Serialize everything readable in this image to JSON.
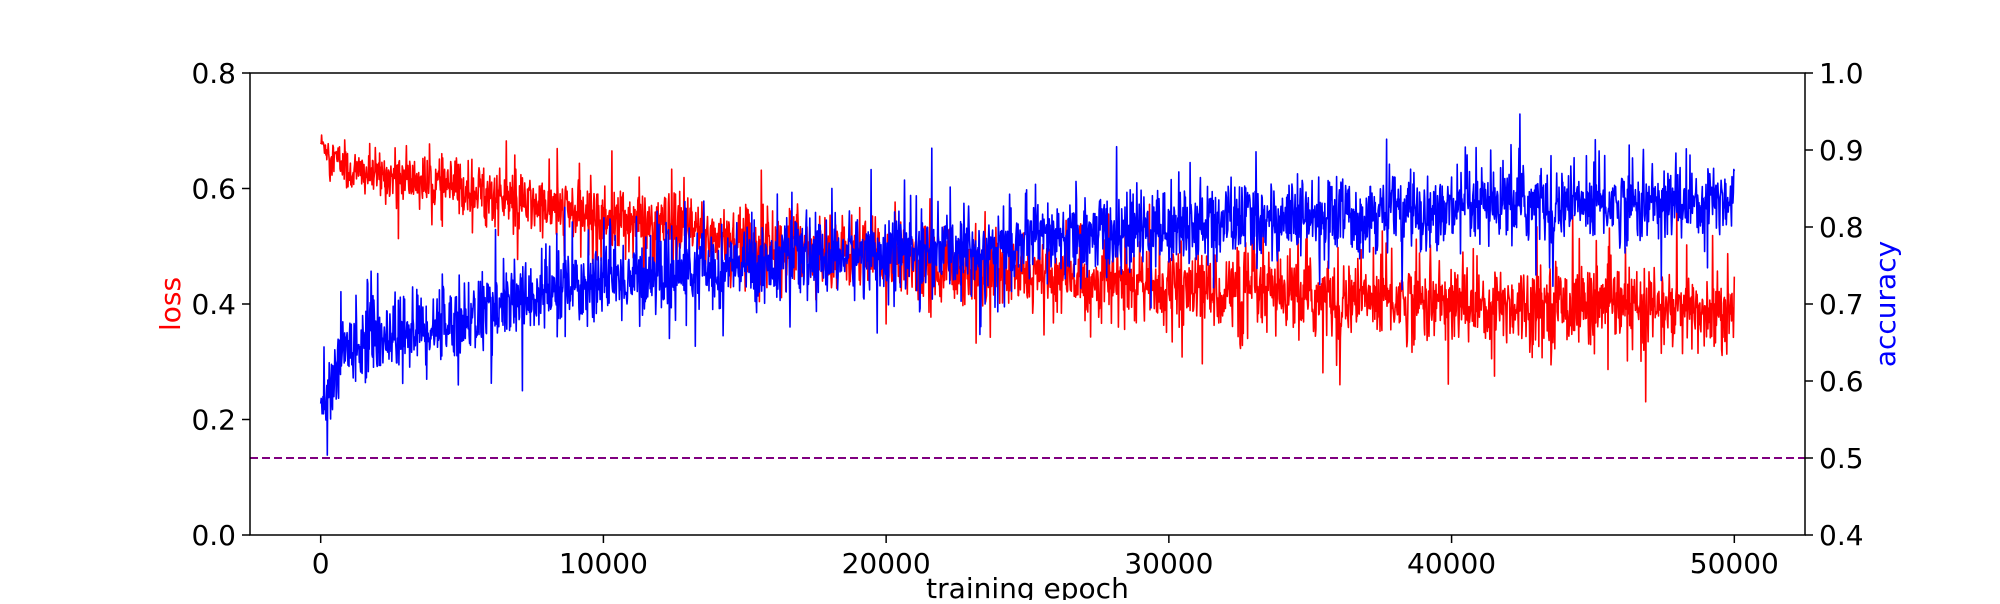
{
  "chart_data": {
    "type": "line",
    "title": "",
    "xlabel": "training epoch",
    "xlim": [
      -2500,
      52500
    ],
    "xticks": [
      0,
      10000,
      20000,
      30000,
      40000,
      50000
    ],
    "grid": false,
    "legend": "none",
    "axes": {
      "left": {
        "label": "loss",
        "color": "#ff0000",
        "ylim": [
          0.0,
          0.8
        ],
        "ticks": [
          "0.0",
          "0.2",
          "0.4",
          "0.6",
          "0.8"
        ]
      },
      "right": {
        "label": "accuracy",
        "color": "#0000ff",
        "ylim": [
          0.4,
          1.0
        ],
        "ticks": [
          "0.4",
          "0.5",
          "0.6",
          "0.7",
          "0.8",
          "0.9",
          "1.0"
        ]
      }
    },
    "series": [
      {
        "axis": "left",
        "color": "#ff0000",
        "x": [
          0,
          1000,
          2500,
          5000,
          7500,
          10000,
          12500,
          15000,
          17500,
          20000,
          22500,
          25000,
          27500,
          30000,
          32500,
          35000,
          37500,
          40000,
          42500,
          45000,
          47500,
          50000
        ],
        "y": [
          0.68,
          0.63,
          0.62,
          0.6,
          0.57,
          0.55,
          0.53,
          0.51,
          0.5,
          0.48,
          0.46,
          0.45,
          0.44,
          0.43,
          0.42,
          0.41,
          0.41,
          0.4,
          0.4,
          0.4,
          0.39,
          0.38
        ],
        "spread": [
          0.02,
          0.04,
          0.04,
          0.05,
          0.05,
          0.06,
          0.06,
          0.06,
          0.06,
          0.06,
          0.06,
          0.06,
          0.06,
          0.06,
          0.07,
          0.07,
          0.07,
          0.07,
          0.07,
          0.07,
          0.07,
          0.07
        ]
      },
      {
        "axis": "right",
        "color": "#0000ff",
        "x": [
          0,
          1000,
          2500,
          5000,
          7500,
          10000,
          12500,
          15000,
          17500,
          20000,
          22500,
          25000,
          27500,
          30000,
          32500,
          35000,
          37500,
          40000,
          42500,
          45000,
          47500,
          50000
        ],
        "y": [
          0.56,
          0.65,
          0.66,
          0.68,
          0.71,
          0.73,
          0.74,
          0.75,
          0.76,
          0.77,
          0.77,
          0.78,
          0.79,
          0.8,
          0.81,
          0.81,
          0.82,
          0.82,
          0.83,
          0.83,
          0.83,
          0.84
        ],
        "spread": [
          0.04,
          0.05,
          0.05,
          0.05,
          0.05,
          0.05,
          0.05,
          0.05,
          0.05,
          0.05,
          0.05,
          0.05,
          0.05,
          0.05,
          0.05,
          0.05,
          0.05,
          0.05,
          0.05,
          0.05,
          0.05,
          0.05
        ]
      }
    ],
    "reference_lines": [
      {
        "axis": "right",
        "y": 0.5,
        "color": "#800080",
        "style": "dashed"
      }
    ]
  }
}
